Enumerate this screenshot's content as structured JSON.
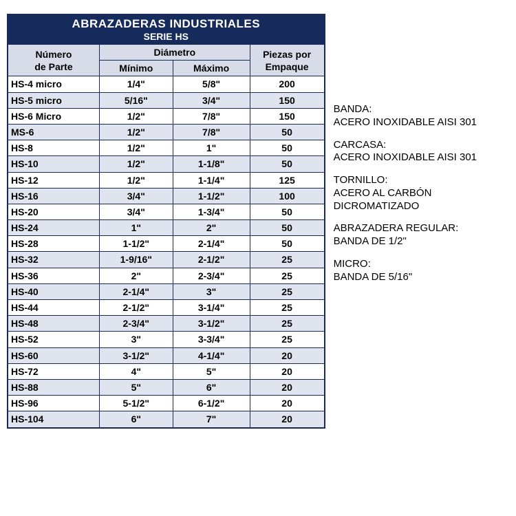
{
  "title": {
    "main": "ABRAZADERAS INDUSTRIALES",
    "sub": "SERIE HS"
  },
  "headers": {
    "part1": "Número",
    "part2": "de Parte",
    "diameter": "Diámetro",
    "min": "Mínimo",
    "max": "Máximo",
    "pack1": "Piezas por",
    "pack2": "Empaque"
  },
  "rows": [
    {
      "part": "HS-4 micro",
      "min": "1/4\"",
      "max": "5/8\"",
      "pack": "200"
    },
    {
      "part": "HS-5 micro",
      "min": "5/16\"",
      "max": "3/4\"",
      "pack": "150"
    },
    {
      "part": "HS-6 Micro",
      "min": "1/2\"",
      "max": "7/8\"",
      "pack": "150"
    },
    {
      "part": "MS-6",
      "min": "1/2\"",
      "max": "7/8\"",
      "pack": "50"
    },
    {
      "part": "HS-8",
      "min": "1/2\"",
      "max": "1\"",
      "pack": "50"
    },
    {
      "part": "HS-10",
      "min": "1/2\"",
      "max": "1-1/8\"",
      "pack": "50"
    },
    {
      "part": "HS-12",
      "min": "1/2\"",
      "max": "1-1/4\"",
      "pack": "125"
    },
    {
      "part": "HS-16",
      "min": "3/4\"",
      "max": "1-1/2\"",
      "pack": "100"
    },
    {
      "part": "HS-20",
      "min": "3/4\"",
      "max": "1-3/4\"",
      "pack": "50"
    },
    {
      "part": "HS-24",
      "min": "1\"",
      "max": "2\"",
      "pack": "50"
    },
    {
      "part": "HS-28",
      "min": "1-1/2\"",
      "max": "2-1/4\"",
      "pack": "50"
    },
    {
      "part": "HS-32",
      "min": "1-9/16\"",
      "max": "2-1/2\"",
      "pack": "25"
    },
    {
      "part": "HS-36",
      "min": "2\"",
      "max": "2-3/4\"",
      "pack": "25"
    },
    {
      "part": "HS-40",
      "min": "2-1/4\"",
      "max": "3\"",
      "pack": "25"
    },
    {
      "part": "HS-44",
      "min": "2-1/2\"",
      "max": "3-1/4\"",
      "pack": "25"
    },
    {
      "part": "HS-48",
      "min": "2-3/4\"",
      "max": "3-1/2\"",
      "pack": "25"
    },
    {
      "part": "HS-52",
      "min": "3\"",
      "max": "3-3/4\"",
      "pack": "25"
    },
    {
      "part": "HS-60",
      "min": "3-1/2\"",
      "max": "4-1/4\"",
      "pack": "20"
    },
    {
      "part": "HS-72",
      "min": "4\"",
      "max": "5\"",
      "pack": "20"
    },
    {
      "part": "HS-88",
      "min": "5\"",
      "max": "6\"",
      "pack": "20"
    },
    {
      "part": "HS-96",
      "min": "5-1/2\"",
      "max": "6-1/2\"",
      "pack": "20"
    },
    {
      "part": "HS-104",
      "min": "6\"",
      "max": "7\"",
      "pack": "20"
    }
  ],
  "side": [
    {
      "label": "BANDA:",
      "value": "ACERO INOXIDABLE AISI 301"
    },
    {
      "label": "CARCASA:",
      "value": "ACERO INOXIDABLE AISI 301"
    },
    {
      "label": "TORNILLO:",
      "value": "ACERO AL CARBÓN DICROMATIZADO"
    },
    {
      "label": "ABRAZADERA REGULAR:",
      "value": "BANDA DE 1/2\""
    },
    {
      "label": "MICRO:",
      "value": "BANDA DE 5/16\""
    }
  ],
  "colors": {
    "header_bg": "#162a5c",
    "border": "#1a2a56",
    "th_bg": "#d7dce8",
    "row_alt_bg": "#dfe4ee",
    "row_bg": "#ffffff"
  }
}
